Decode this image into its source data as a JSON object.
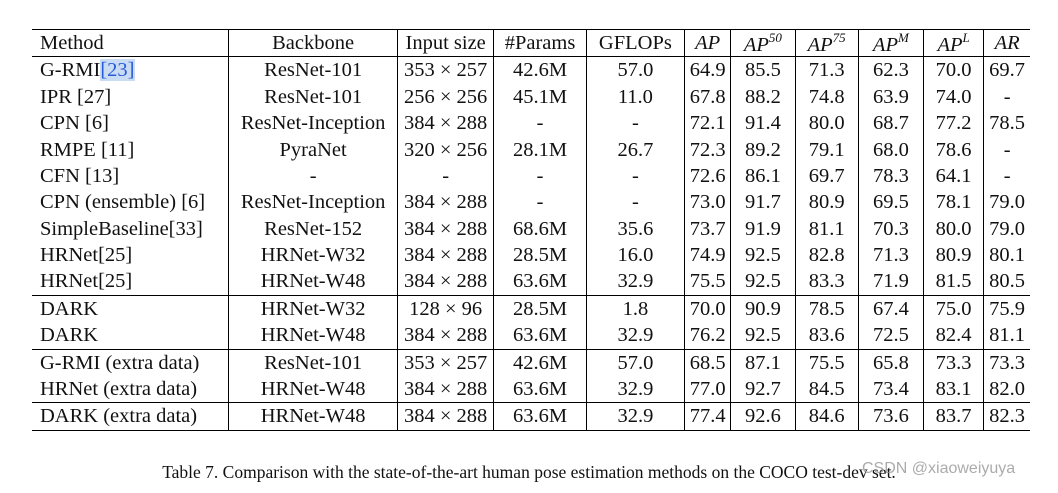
{
  "table": {
    "headers": [
      {
        "text": "Method",
        "sup": ""
      },
      {
        "text": "Backbone",
        "sup": ""
      },
      {
        "text": "Input size",
        "sup": ""
      },
      {
        "text": "#Params",
        "sup": ""
      },
      {
        "text": "GFLOPs",
        "sup": ""
      },
      {
        "text": "AP",
        "sup": "",
        "italic": true
      },
      {
        "text": "AP",
        "sup": "50",
        "italic": true
      },
      {
        "text": "AP",
        "sup": "75",
        "italic": true
      },
      {
        "text": "AP",
        "sup": "M",
        "italic": true
      },
      {
        "text": "AP",
        "sup": "L",
        "italic": true
      },
      {
        "text": "AR",
        "sup": "",
        "italic": true
      }
    ],
    "rows": [
      {
        "cells": [
          "G-RMI",
          "ResNet-101",
          "353 × 257",
          "42.6M",
          "57.0",
          "64.9",
          "85.5",
          "71.3",
          "62.3",
          "70.0",
          "69.7"
        ],
        "method_ref": "[23]",
        "ref_highlight": true,
        "bold": []
      },
      {
        "cells": [
          "IPR [27]",
          "ResNet-101",
          "256 × 256",
          "45.1M",
          "11.0",
          "67.8",
          "88.2",
          "74.8",
          "63.9",
          "74.0",
          "-"
        ],
        "bold": []
      },
      {
        "cells": [
          "CPN [6]",
          "ResNet-Inception",
          "384 × 288",
          "-",
          "-",
          "72.1",
          "91.4",
          "80.0",
          "68.7",
          "77.2",
          "78.5"
        ],
        "bold": []
      },
      {
        "cells": [
          "RMPE [11]",
          "PyraNet",
          "320 × 256",
          "28.1M",
          "26.7",
          "72.3",
          "89.2",
          "79.1",
          "68.0",
          "78.6",
          "-"
        ],
        "bold": []
      },
      {
        "cells": [
          "CFN [13]",
          "-",
          "-",
          "-",
          "-",
          "72.6",
          "86.1",
          "69.7",
          "78.3",
          "64.1",
          "-"
        ],
        "bold": []
      },
      {
        "cells": [
          "CPN (ensemble) [6]",
          "ResNet-Inception",
          "384 × 288",
          "-",
          "-",
          "73.0",
          "91.7",
          "80.9",
          "69.5",
          "78.1",
          "79.0"
        ],
        "bold": []
      },
      {
        "cells": [
          "SimpleBaseline[33]",
          "ResNet-152",
          "384 × 288",
          "68.6M",
          "35.6",
          "73.7",
          "91.9",
          "81.1",
          "70.3",
          "80.0",
          "79.0"
        ],
        "bold": []
      },
      {
        "cells": [
          "HRNet[25]",
          "HRNet-W32",
          "384 × 288",
          "28.5M",
          "16.0",
          "74.9",
          "92.5",
          "82.8",
          "71.3",
          "80.9",
          "80.1"
        ],
        "bold": [
          6
        ]
      },
      {
        "cells": [
          "HRNet[25]",
          "HRNet-W48",
          "384 × 288",
          "63.6M",
          "32.9",
          "75.5",
          "92.5",
          "83.3",
          "71.9",
          "81.5",
          "80.5"
        ],
        "bold": [
          6
        ]
      },
      {
        "cells": [
          "DARK",
          "HRNet-W32",
          "128 × 96",
          "28.5M",
          "1.8",
          "70.0",
          "90.9",
          "78.5",
          "67.4",
          "75.0",
          "75.9"
        ],
        "bold": [
          0,
          4
        ],
        "sep": true
      },
      {
        "cells": [
          "DARK",
          "HRNet-W48",
          "384 × 288",
          "63.6M",
          "32.9",
          "76.2",
          "92.5",
          "83.6",
          "72.5",
          "82.4",
          "81.1"
        ],
        "bold": [
          0,
          5,
          6,
          7,
          8,
          9,
          10
        ]
      },
      {
        "cells": [
          "G-RMI (extra data)",
          "ResNet-101",
          "353 × 257",
          "42.6M",
          "57.0",
          "68.5",
          "87.1",
          "75.5",
          "65.8",
          "73.3",
          "73.3"
        ],
        "bold": [],
        "gap": true
      },
      {
        "cells": [
          "HRNet (extra data)",
          "HRNet-W48",
          "384 × 288",
          "63.6M",
          "32.9",
          "77.0",
          "92.7",
          "84.5",
          "73.4",
          "83.1",
          "82.0"
        ],
        "bold": [
          6
        ]
      },
      {
        "cells": [
          "DARK (extra data)",
          "HRNet-W48",
          "384 × 288",
          "63.6M",
          "32.9",
          "77.4",
          "92.6",
          "84.6",
          "73.6",
          "83.7",
          "82.3"
        ],
        "bold": [
          0,
          5,
          7,
          8,
          9,
          10
        ],
        "sep": true,
        "last": true
      }
    ]
  },
  "caption": "Table 7. Comparison with the state-of-the-art human pose estimation methods on the COCO test-dev set.",
  "watermark": "CSDN @xiaoweiyuya"
}
